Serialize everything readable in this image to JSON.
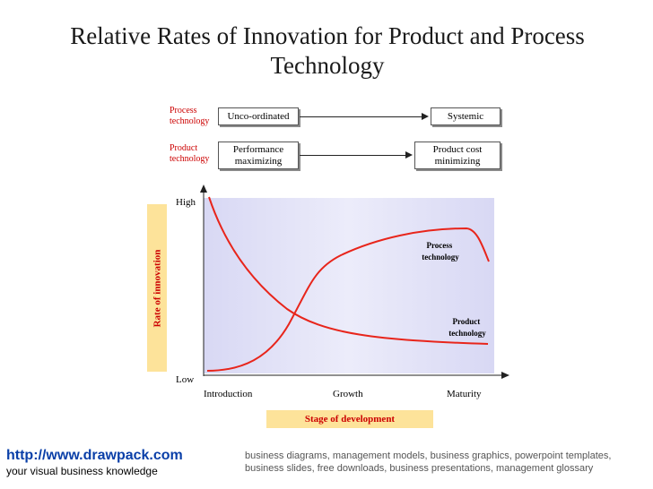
{
  "title": "Relative Rates of Innovation for Product and Process Technology",
  "rows": {
    "process": {
      "label": "Process technology",
      "from": "Unco-ordinated",
      "to": "Systemic"
    },
    "product": {
      "label": "Product technology",
      "from": "Performance maximizing",
      "to": "Product cost minimizing"
    }
  },
  "chart_data": {
    "type": "line",
    "y_axis_label": "Rate of innovation",
    "x_axis_label": "Stage of development",
    "y_tick_labels": [
      "High",
      "Low"
    ],
    "x_tick_labels": [
      "Introduction",
      "Growth",
      "Maturity"
    ],
    "series": [
      {
        "name": "Process technology",
        "shape": "low at introduction, rises sharply through growth, peaks near maturity then dips",
        "color": "#e8251b"
      },
      {
        "name": "Product technology",
        "shape": "high at introduction, falls steeply, flattens to low through maturity",
        "color": "#e8251b"
      }
    ],
    "grid": false,
    "plot_background": "#e6e6f8"
  },
  "footer": {
    "link": "http://www.drawpack.com",
    "tagline": "your visual business knowledge",
    "description": "business diagrams, management models, business graphics, powerpoint templates, business slides, free downloads, business presentations, management glossary"
  }
}
